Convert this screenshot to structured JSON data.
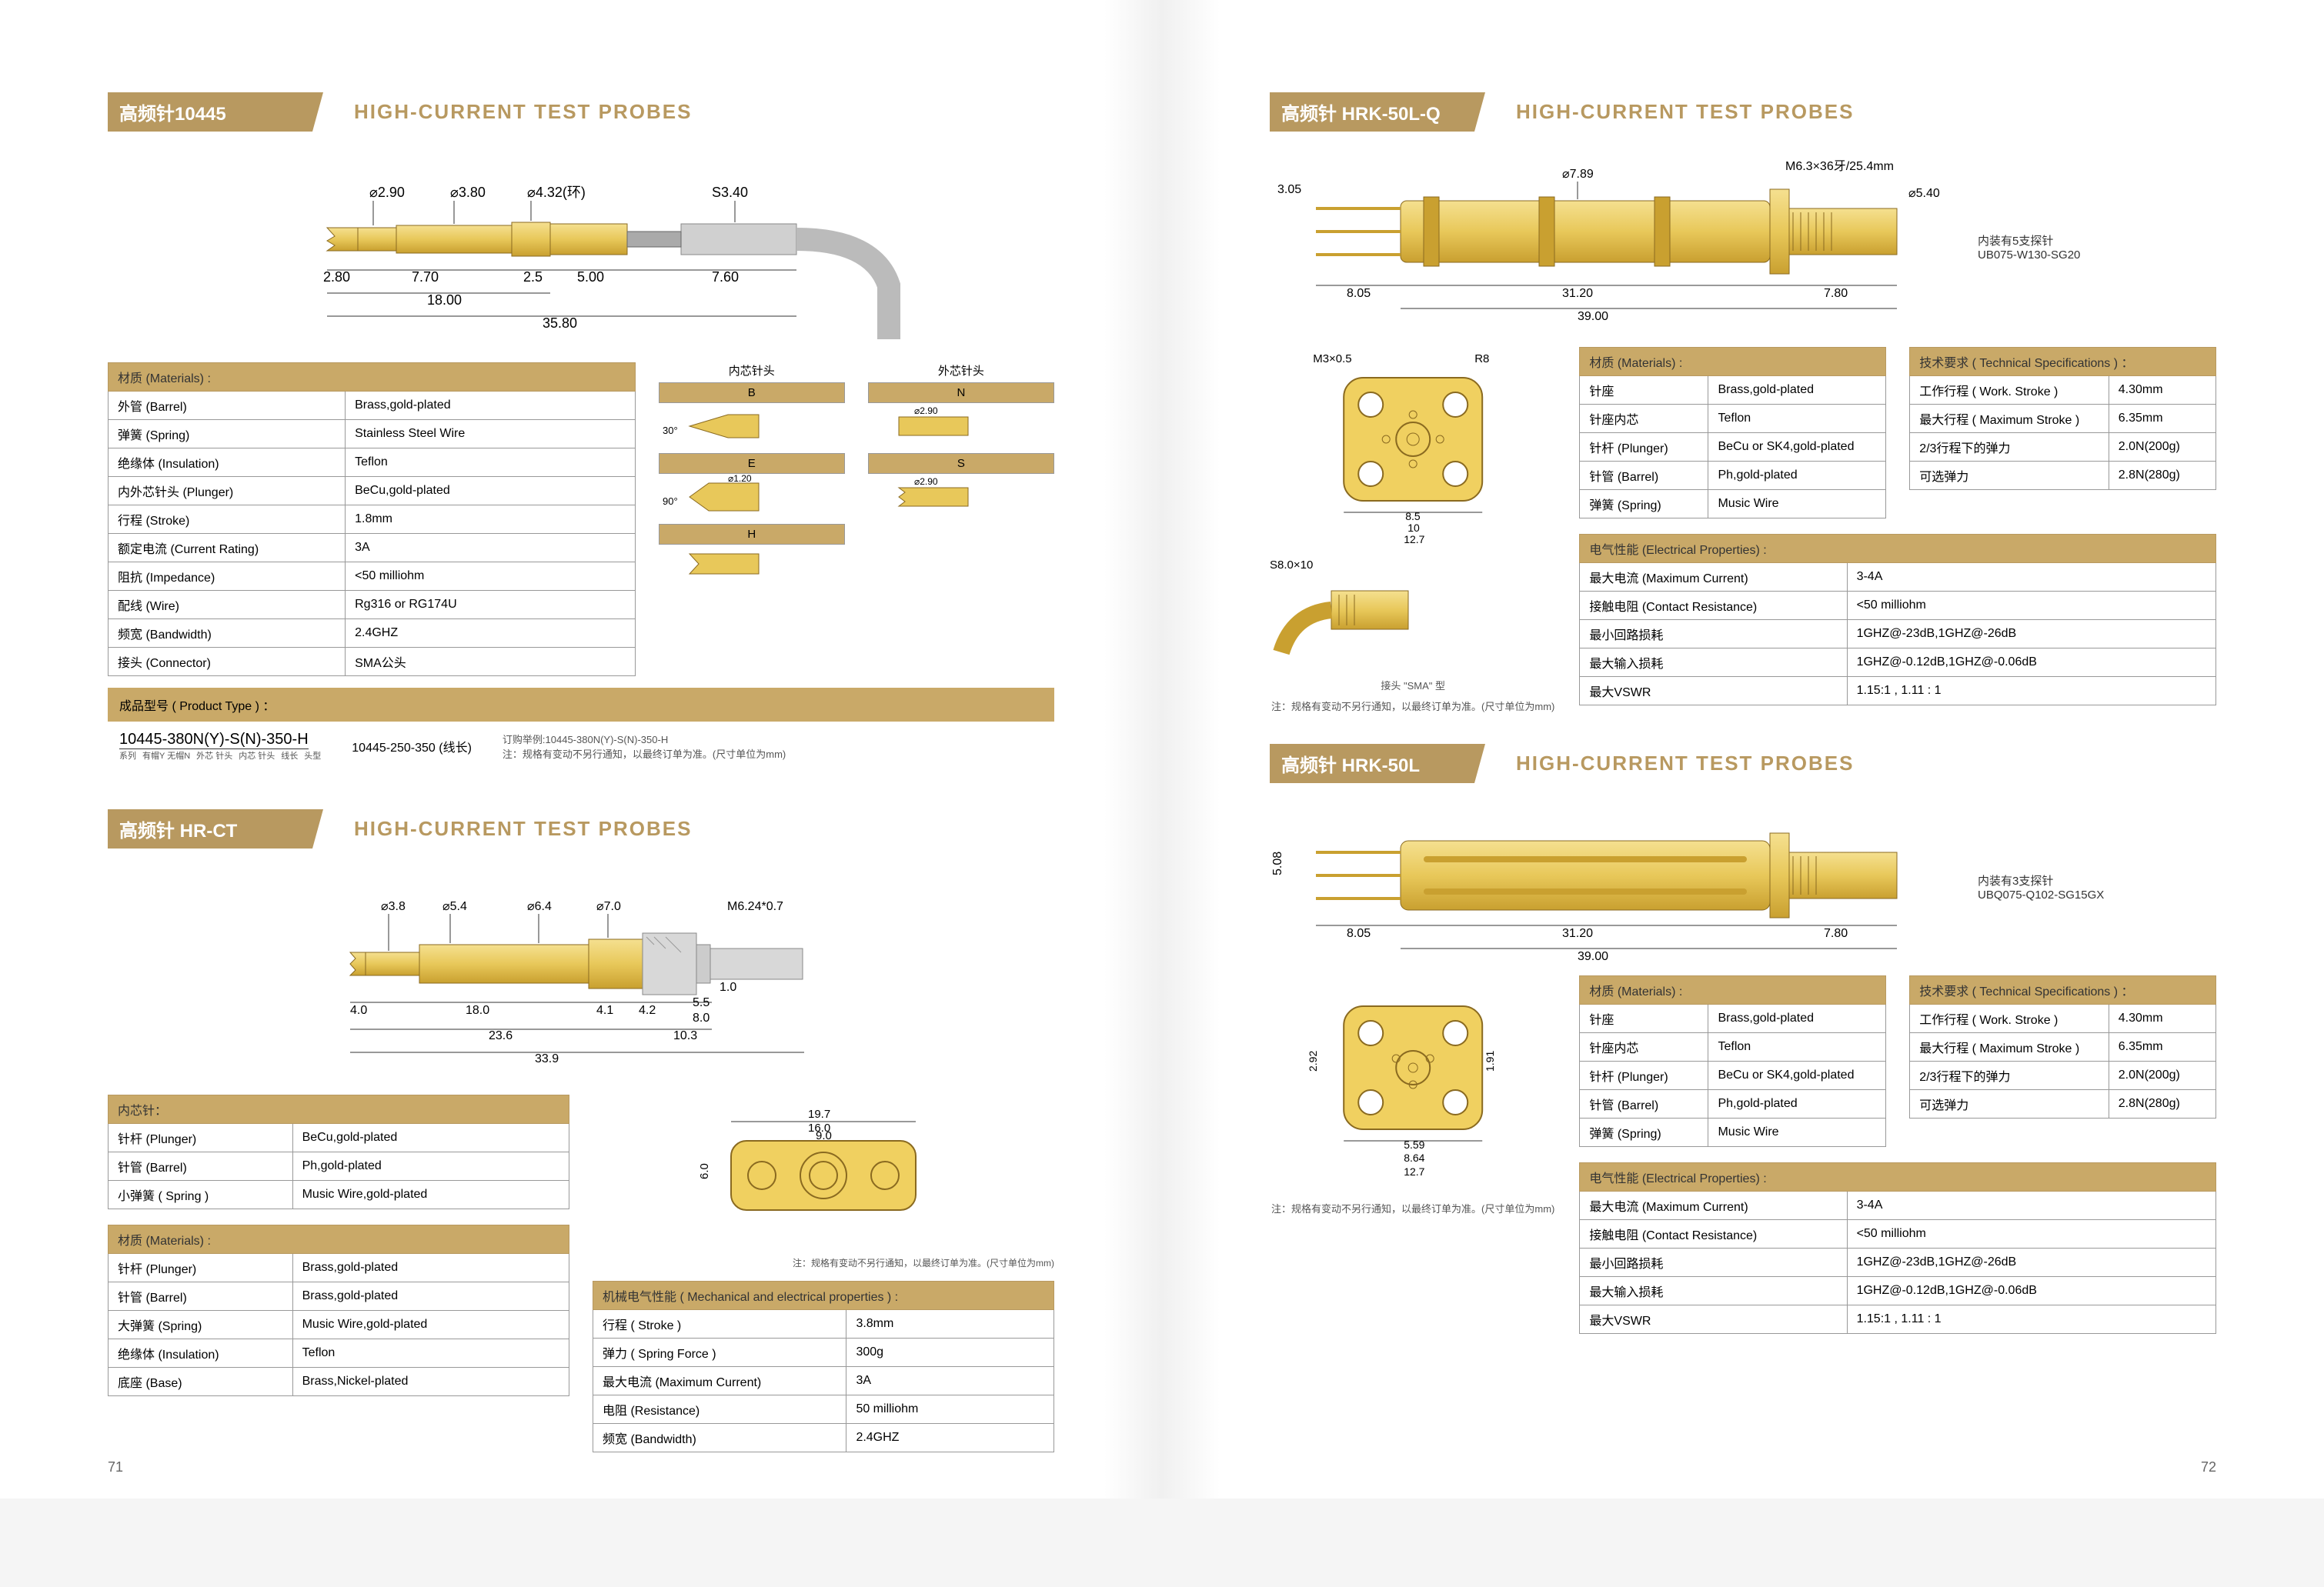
{
  "colors": {
    "brand": "#b89960",
    "header_bg": "#c9a968",
    "probe_gold": "#e8c85a",
    "probe_gold_dark": "#c9a030",
    "border": "#999999",
    "text": "#333333"
  },
  "page_left_num": "71",
  "page_right_num": "72",
  "sections": {
    "s10445": {
      "title_cn": "高频针10445",
      "title_en": "HIGH-CURRENT TEST PROBES",
      "dims": {
        "d1": "⌀2.90",
        "d2": "⌀3.80",
        "d3": "⌀4.32(环)",
        "d4": "S3.40",
        "l1": "2.80",
        "l2": "7.70",
        "l3": "2.5",
        "l4": "5.00",
        "l5": "7.60",
        "l6": "18.00",
        "l7": "35.80"
      },
      "materials_header": "材质 (Materials) :",
      "materials": [
        [
          "外管 (Barrel)",
          "Brass,gold-plated"
        ],
        [
          "弹簧 (Spring)",
          "Stainless Steel Wire"
        ],
        [
          "绝缘体 (Insulation)",
          "Teflon"
        ],
        [
          "内外芯针头 (Plunger)",
          "BeCu,gold-plated"
        ],
        [
          "行程 (Stroke)",
          "1.8mm"
        ],
        [
          "额定电流 (Current Rating)",
          "3A"
        ],
        [
          "阻抗 (Impedance)",
          "<50 milliohm"
        ],
        [
          "配线 (Wire)",
          "Rg316 or RG174U"
        ],
        [
          "频宽 (Bandwidth)",
          "2.4GHZ"
        ],
        [
          "接头 (Connector)",
          "SMA公头"
        ]
      ],
      "tip_inner": "内芯针头",
      "tip_outer": "外芯针头",
      "tip_codes": {
        "b": "B",
        "e": "E",
        "h": "H",
        "n": "N",
        "s": "S"
      },
      "tip_dims": {
        "n": "⌀2.90",
        "e": "⌀1.20",
        "s": "⌀2.90"
      },
      "product_type_header": "成品型号 ( Product Type ) ：",
      "product_code": "10445-380N(Y)-S(N)-350-H",
      "sub_labels": [
        "系列",
        "有帽Y 无帽N",
        "外芯 针头",
        "内芯 针头",
        "线长",
        "头型"
      ],
      "product_alt": "10445-250-350 (线长)",
      "order_example": "订购举例:10445-380N(Y)-S(N)-350-H",
      "spec_note": "注：规格有变动不另行通知，以最终订单为准。(尺寸单位为mm)"
    },
    "hrct": {
      "title_cn": "高频针 HR-CT",
      "title_en": "HIGH-CURRENT TEST PROBES",
      "dims": {
        "d1": "⌀3.8",
        "d2": "⌀5.4",
        "d3": "⌀6.4",
        "d4": "⌀7.0",
        "thread": "M6.24*0.7",
        "l1": "4.0",
        "l2": "18.0",
        "l3": "4.1",
        "l4": "4.2",
        "l5": "5.5",
        "l6": "8.0",
        "l7": "1.0",
        "l8": "23.6",
        "l9": "10.3",
        "l10": "33.9"
      },
      "flange_dims": {
        "a": "19.7",
        "b": "16.0",
        "c": "9.0",
        "h": "6.0"
      },
      "inner_header": "内芯针：",
      "inner": [
        [
          "针杆 (Plunger)",
          "BeCu,gold-plated"
        ],
        [
          "针管 (Barrel)",
          "Ph,gold-plated"
        ],
        [
          "小弹簧 ( Spring )",
          "Music Wire,gold-plated"
        ]
      ],
      "materials_header": "材质 (Materials) :",
      "materials": [
        [
          "针杆 (Plunger)",
          "Brass,gold-plated"
        ],
        [
          "针管 (Barrel)",
          "Brass,gold-plated"
        ],
        [
          "大弹簧 (Spring)",
          "Music Wire,gold-plated"
        ],
        [
          "绝缘体 (Insulation)",
          "Teflon"
        ],
        [
          "底座 (Base)",
          "Brass,Nickel-plated"
        ]
      ],
      "mech_header": "机械电气性能 ( Mechanical and electrical properties ) :",
      "mech": [
        [
          "行程 ( Stroke )",
          "3.8mm"
        ],
        [
          "弹力 ( Spring Force )",
          "300g"
        ],
        [
          "最大电流 (Maximum Current)",
          "3A"
        ],
        [
          "电阻 (Resistance)",
          "50 milliohm"
        ],
        [
          "频宽 (Bandwidth)",
          "2.4GHZ"
        ]
      ],
      "spec_note": "注：规格有变动不另行通知，以最终订单为准。(尺寸单位为mm)"
    },
    "hrk50lq": {
      "title_cn": "高频针 HRK-50L-Q",
      "title_en": "HIGH-CURRENT TEST PROBES",
      "dims": {
        "h1": "3.05",
        "d1": "⌀7.89",
        "thread": "M6.3×36牙/25.4mm",
        "d2": "⌀5.40",
        "l1": "8.05",
        "l2": "31.20",
        "l3": "7.80",
        "l4": "39.00"
      },
      "side_note1": "内装有5支探针",
      "side_note2": "UB075-W130-SG20",
      "flange_label1": "M3×0.5",
      "flange_label2": "R8",
      "flange_dims": {
        "a": "8.5",
        "b": "10",
        "c": "12.7"
      },
      "sma_label": "S8.0×10",
      "sma_connector": "接头 \"SMA\" 型",
      "spec_note": "注：规格有变动不另行通知，以最终订单为准。(尺寸单位为mm)",
      "materials_header": "材质 (Materials) :",
      "materials": [
        [
          "针座",
          "Brass,gold-plated"
        ],
        [
          "针座内芯",
          "Teflon"
        ],
        [
          "针杆 (Plunger)",
          "BeCu or SK4,gold-plated"
        ],
        [
          "针管 (Barrel)",
          "Ph,gold-plated"
        ],
        [
          "弹簧 (Spring)",
          "Music Wire"
        ]
      ],
      "tech_header": "技术要求 ( Technical Specifications ) ：",
      "tech": [
        [
          "工作行程 ( Work. Stroke )",
          "4.30mm"
        ],
        [
          "最大行程 ( Maximum Stroke )",
          "6.35mm"
        ],
        [
          "2/3行程下的弹力",
          "2.0N(200g)"
        ],
        [
          "可选弹力",
          "2.8N(280g)"
        ]
      ],
      "elec_header": "电气性能 (Electrical Properties) :",
      "elec": [
        [
          "最大电流 (Maximum Current)",
          "3-4A"
        ],
        [
          "接触电阻 (Contact Resistance)",
          "<50 milliohm"
        ],
        [
          "最小回路损耗",
          "1GHZ@-23dB,1GHZ@-26dB"
        ],
        [
          "最大输入损耗",
          "1GHZ@-0.12dB,1GHZ@-0.06dB"
        ],
        [
          "最大VSWR",
          "1.15:1 , 1.11 : 1"
        ]
      ]
    },
    "hrk50l": {
      "title_cn": "高频针 HRK-50L",
      "title_en": "HIGH-CURRENT TEST PROBES",
      "dims": {
        "h1": "5.08",
        "l1": "8.05",
        "l2": "31.20",
        "l3": "7.80",
        "l4": "39.00"
      },
      "side_note1": "内装有3支探针",
      "side_note2": "UBQ075-Q102-SG15GX",
      "flange_dims": {
        "h": "2.92",
        "w": "1.91",
        "a": "5.59",
        "b": "8.64",
        "c": "12.7"
      },
      "spec_note": "注：规格有变动不另行通知，以最终订单为准。(尺寸单位为mm)",
      "materials_header": "材质 (Materials) :",
      "materials": [
        [
          "针座",
          "Brass,gold-plated"
        ],
        [
          "针座内芯",
          "Teflon"
        ],
        [
          "针杆 (Plunger)",
          "BeCu or SK4,gold-plated"
        ],
        [
          "针管 (Barrel)",
          "Ph,gold-plated"
        ],
        [
          "弹簧 (Spring)",
          "Music Wire"
        ]
      ],
      "tech_header": "技术要求 ( Technical Specifications ) ：",
      "tech": [
        [
          "工作行程 ( Work. Stroke )",
          "4.30mm"
        ],
        [
          "最大行程 ( Maximum Stroke )",
          "6.35mm"
        ],
        [
          "2/3行程下的弹力",
          "2.0N(200g)"
        ],
        [
          "可选弹力",
          "2.8N(280g)"
        ]
      ],
      "elec_header": "电气性能 (Electrical Properties) :",
      "elec": [
        [
          "最大电流 (Maximum Current)",
          "3-4A"
        ],
        [
          "接触电阻 (Contact Resistance)",
          "<50 milliohm"
        ],
        [
          "最小回路损耗",
          "1GHZ@-23dB,1GHZ@-26dB"
        ],
        [
          "最大输入损耗",
          "1GHZ@-0.12dB,1GHZ@-0.06dB"
        ],
        [
          "最大VSWR",
          "1.15:1 , 1.11 : 1"
        ]
      ]
    }
  }
}
